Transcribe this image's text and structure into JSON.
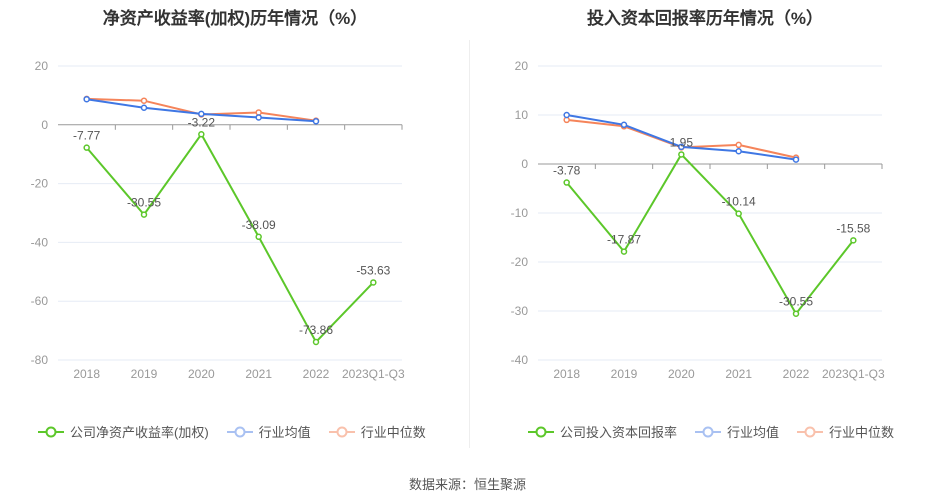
{
  "chart_data": [
    {
      "type": "line",
      "title": "净资产收益率(加权)历年情况（%）",
      "categories": [
        "2018",
        "2019",
        "2020",
        "2021",
        "2022",
        "2023Q1-Q3"
      ],
      "ylim": [
        -80,
        20
      ],
      "yticks": [
        20,
        0,
        -20,
        -40,
        -60,
        -80
      ],
      "series": [
        {
          "name": "公司净资产收益率(加权)",
          "color": "#5cc72a",
          "values": [
            -7.77,
            -30.55,
            -3.22,
            -38.09,
            -73.86,
            -53.63
          ],
          "labels": true
        },
        {
          "name": "行业均值",
          "color": "#3f77e4",
          "values": [
            8.7,
            5.8,
            3.7,
            2.5,
            1.2,
            null
          ]
        },
        {
          "name": "行业中位数",
          "color": "#f5845a",
          "values": [
            8.8,
            8.2,
            3.5,
            4.2,
            1.4,
            null
          ]
        }
      ]
    },
    {
      "type": "line",
      "title": "投入资本回报率历年情况（%）",
      "categories": [
        "2018",
        "2019",
        "2020",
        "2021",
        "2022",
        "2023Q1-Q3"
      ],
      "ylim": [
        -40,
        20
      ],
      "yticks": [
        20,
        10,
        0,
        -10,
        -20,
        -30,
        -40
      ],
      "series": [
        {
          "name": "公司投入资本回报率",
          "color": "#5cc72a",
          "values": [
            -3.78,
            -17.87,
            1.95,
            -10.14,
            -30.55,
            -15.58
          ],
          "labels": true
        },
        {
          "name": "行业均值",
          "color": "#3f77e4",
          "values": [
            10.0,
            8.0,
            3.5,
            2.6,
            0.9,
            null
          ]
        },
        {
          "name": "行业中位数",
          "color": "#f5845a",
          "values": [
            9.0,
            7.7,
            3.4,
            3.9,
            1.3,
            null
          ]
        }
      ]
    }
  ],
  "source": "数据来源：恒生聚源"
}
